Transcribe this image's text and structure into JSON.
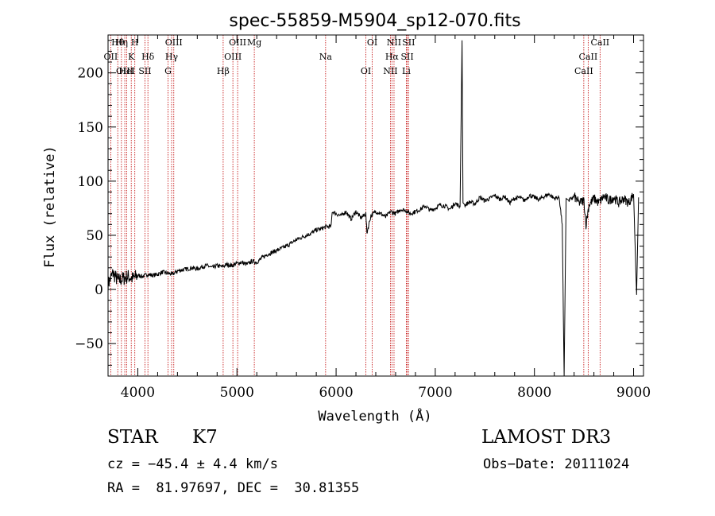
{
  "chart_data": {
    "type": "line",
    "title": "spec-55859-M5904_sp12-070.fits",
    "xlabel": "Wavelength (Å)",
    "ylabel": "Flux (relative)",
    "xlim": [
      3700,
      9100
    ],
    "ylim": [
      -80,
      235
    ],
    "xticks": [
      4000,
      5000,
      6000,
      7000,
      8000,
      9000
    ],
    "yticks": [
      -50,
      0,
      50,
      100,
      150,
      200
    ],
    "series": [
      {
        "name": "flux",
        "x": [
          3700,
          3750,
          3800,
          3850,
          3900,
          3950,
          4000,
          4050,
          4100,
          4150,
          4200,
          4250,
          4300,
          4350,
          4400,
          4450,
          4500,
          4550,
          4600,
          4650,
          4700,
          4750,
          4800,
          4850,
          4900,
          4950,
          5000,
          5050,
          5100,
          5150,
          5200,
          5250,
          5300,
          5350,
          5400,
          5450,
          5500,
          5550,
          5600,
          5650,
          5700,
          5750,
          5800,
          5850,
          5900,
          5950,
          5960,
          6000,
          6050,
          6100,
          6150,
          6200,
          6250,
          6300,
          6310,
          6350,
          6400,
          6450,
          6500,
          6550,
          6600,
          6650,
          6700,
          6750,
          6800,
          6850,
          6900,
          6950,
          7000,
          7050,
          7100,
          7150,
          7200,
          7250,
          7270,
          7280,
          7300,
          7350,
          7400,
          7450,
          7500,
          7550,
          7600,
          7650,
          7700,
          7750,
          7800,
          7850,
          7900,
          7950,
          8000,
          8050,
          8100,
          8150,
          8200,
          8250,
          8280,
          8300,
          8320,
          8350,
          8400,
          8450,
          8500,
          8520,
          8550,
          8600,
          8650,
          8700,
          8750,
          8800,
          8850,
          8900,
          8950,
          9000,
          9030,
          9050
        ],
        "y": [
          5,
          15,
          8,
          10,
          12,
          10,
          13,
          12,
          14,
          13,
          14,
          16,
          15,
          14,
          17,
          18,
          19,
          20,
          19,
          21,
          22,
          20,
          22,
          21,
          23,
          22,
          24,
          25,
          23,
          26,
          25,
          29,
          32,
          34,
          36,
          38,
          40,
          43,
          46,
          48,
          50,
          52,
          55,
          56,
          58,
          58,
          72,
          70,
          68,
          72,
          65,
          72,
          66,
          70,
          52,
          68,
          72,
          70,
          67,
          72,
          70,
          74,
          73,
          70,
          72,
          74,
          77,
          73,
          75,
          78,
          77,
          74,
          80,
          76,
          230,
          80,
          78,
          81,
          79,
          85,
          82,
          84,
          87,
          83,
          86,
          80,
          84,
          85,
          82,
          87,
          85,
          83,
          86,
          88,
          84,
          85,
          60,
          -80,
          84,
          82,
          86,
          80,
          82,
          60,
          78,
          84,
          80,
          86,
          82,
          85,
          80,
          84,
          80,
          88,
          -5,
          85
        ]
      }
    ],
    "lines": [
      {
        "name": "Hθ",
        "wl": 3798
      },
      {
        "name": "OII",
        "wl": 3727
      },
      {
        "name": "OIII",
        "wl": 3869
      },
      {
        "name": "Hη",
        "wl": 3835
      },
      {
        "name": "K",
        "wl": 3934
      },
      {
        "name": "HeI",
        "wl": 3889
      },
      {
        "name": "H",
        "wl": 3970
      },
      {
        "name": "Hδ",
        "wl": 4102
      },
      {
        "name": "SII",
        "wl": 4072
      },
      {
        "name": "OIII",
        "wl": 4363
      },
      {
        "name": "Hγ",
        "wl": 4341
      },
      {
        "name": "G",
        "wl": 4305
      },
      {
        "name": "OIII",
        "wl": 5007
      },
      {
        "name": "OIII",
        "wl": 4959
      },
      {
        "name": "Hβ",
        "wl": 4861
      },
      {
        "name": "Mg",
        "wl": 5175
      },
      {
        "name": "Na",
        "wl": 5894
      },
      {
        "name": "OI",
        "wl": 6300
      },
      {
        "name": "OI",
        "wl": 6364
      },
      {
        "name": "Hα",
        "wl": 6563
      },
      {
        "name": "NII",
        "wl": 6548
      },
      {
        "name": "NII",
        "wl": 6584
      },
      {
        "name": "SII",
        "wl": 6717
      },
      {
        "name": "Li",
        "wl": 6708
      },
      {
        "name": "SII",
        "wl": 6731
      },
      {
        "name": "CaII",
        "wl": 8542
      },
      {
        "name": "CaII",
        "wl": 8498
      },
      {
        "name": "CaII",
        "wl": 8662
      }
    ],
    "line_color": "#c00000"
  },
  "info": {
    "class": "STAR",
    "subclass": "K7",
    "survey": "LAMOST DR3",
    "cz": "cz = −45.4 ± 4.4 km/s",
    "obs_date": "Obs−Date: 20111024",
    "radec": "RA =  81.97697, DEC =  30.81355"
  }
}
